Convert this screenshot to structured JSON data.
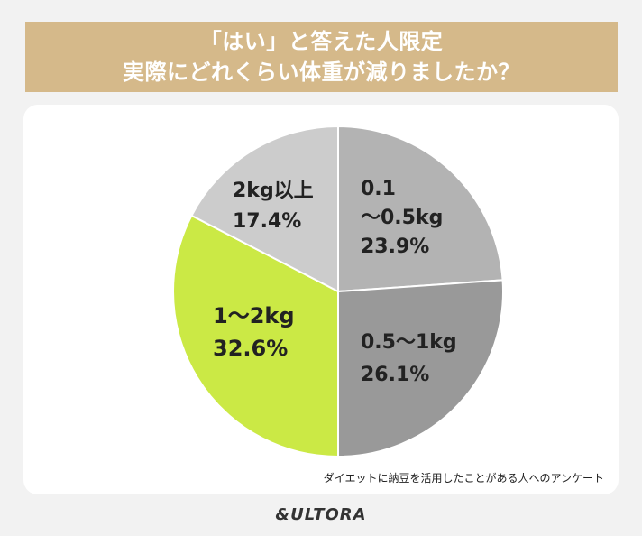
{
  "title": {
    "line1": "「はい」と答えた人限定",
    "line2": "実際にどれくらい体重が減りましたか？"
  },
  "chart_data": {
    "type": "pie",
    "start": "12 o'clock",
    "direction": "clockwise",
    "slices": [
      {
        "label_lines": [
          "0.1",
          "〜0.5kg"
        ],
        "value": 23.9,
        "value_text": "23.9%",
        "color": "#b3b3b3"
      },
      {
        "label_lines": [
          "0.5〜1kg"
        ],
        "value": 26.1,
        "value_text": "26.1%",
        "color": "#999999"
      },
      {
        "label_lines": [
          "1〜2kg"
        ],
        "value": 32.6,
        "value_text": "32.6%",
        "color": "#cbe945"
      },
      {
        "label_lines": [
          "2kg以上"
        ],
        "value": 17.4,
        "value_text": "17.4%",
        "color": "#cccccc"
      }
    ]
  },
  "footnote": "ダイエットに納豆を活用したことがある人へのアンケート",
  "logo": "&ULTORA"
}
